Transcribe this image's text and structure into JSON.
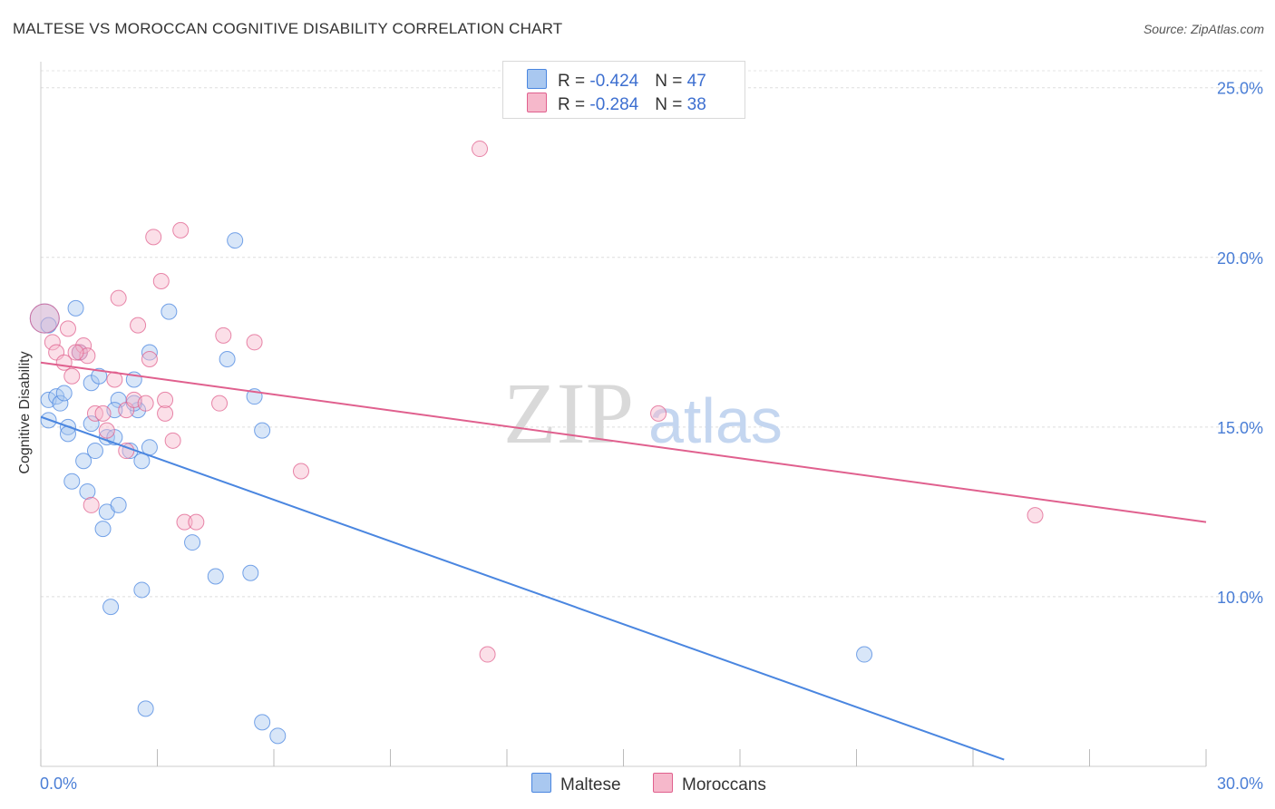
{
  "title": "MALTESE VS MOROCCAN COGNITIVE DISABILITY CORRELATION CHART",
  "source": "Source: ZipAtlas.com",
  "watermark": {
    "zip": "ZIP",
    "atlas": "atlas"
  },
  "legend": {
    "rows": [
      {
        "r_label": "R = ",
        "r_value": "-0.424",
        "n_label": "N = ",
        "n_value": "47",
        "color": "#a9c8f0"
      },
      {
        "r_label": "R = ",
        "r_value": "-0.284",
        "n_label": "N = ",
        "n_value": "38",
        "color": "#f6b8cb"
      }
    ]
  },
  "bottom_legend": [
    {
      "label": "Maltese",
      "color": "#a9c8f0"
    },
    {
      "label": "Moroccans",
      "color": "#f6b8cb"
    }
  ],
  "chart_data": {
    "type": "scatter",
    "title": "MALTESE VS MOROCCAN COGNITIVE DISABILITY CORRELATION CHART",
    "xlabel": "",
    "ylabel": "Cognitive Disability",
    "xlim": [
      0,
      30
    ],
    "ylim": [
      5,
      25.5
    ],
    "x_tick_labels": [
      "0.0%",
      "30.0%"
    ],
    "y_ticks": [
      10,
      15,
      20,
      25
    ],
    "y_tick_labels": [
      "10.0%",
      "15.0%",
      "20.0%",
      "25.0%"
    ],
    "grid": true,
    "series": [
      {
        "name": "Maltese",
        "color": "#4a86e0",
        "fill": "#a9c8f0",
        "trend": {
          "x": [
            0,
            24.8
          ],
          "y": [
            15.3,
            5.2
          ]
        },
        "points": [
          [
            0.1,
            18.2
          ],
          [
            0.2,
            15.2
          ],
          [
            0.2,
            15.8
          ],
          [
            0.4,
            15.9
          ],
          [
            0.5,
            15.7
          ],
          [
            0.6,
            16.0
          ],
          [
            0.7,
            15.0
          ],
          [
            0.7,
            14.8
          ],
          [
            0.8,
            13.4
          ],
          [
            0.9,
            18.5
          ],
          [
            1.0,
            17.2
          ],
          [
            1.1,
            14.0
          ],
          [
            1.2,
            13.1
          ],
          [
            1.3,
            15.1
          ],
          [
            1.3,
            16.3
          ],
          [
            1.4,
            14.3
          ],
          [
            1.5,
            16.5
          ],
          [
            1.6,
            12.0
          ],
          [
            1.7,
            14.7
          ],
          [
            1.7,
            12.5
          ],
          [
            1.8,
            9.7
          ],
          [
            1.9,
            14.7
          ],
          [
            2.0,
            12.7
          ],
          [
            2.0,
            15.8
          ],
          [
            2.3,
            14.3
          ],
          [
            2.4,
            16.4
          ],
          [
            2.5,
            15.5
          ],
          [
            2.6,
            14.0
          ],
          [
            2.8,
            14.4
          ],
          [
            2.8,
            17.2
          ],
          [
            3.3,
            18.4
          ],
          [
            1.9,
            15.5
          ],
          [
            2.6,
            10.2
          ],
          [
            2.7,
            6.7
          ],
          [
            3.9,
            11.6
          ],
          [
            4.5,
            10.6
          ],
          [
            4.8,
            17.0
          ],
          [
            5.0,
            20.5
          ],
          [
            5.4,
            10.7
          ],
          [
            5.5,
            15.9
          ],
          [
            5.7,
            14.9
          ],
          [
            5.7,
            6.3
          ],
          [
            6.1,
            5.9
          ],
          [
            21.2,
            8.3
          ],
          [
            0.2,
            18.0
          ],
          [
            1.0,
            17.2
          ],
          [
            2.4,
            15.7
          ]
        ]
      },
      {
        "name": "Moroccans",
        "color": "#e0608e",
        "fill": "#f6b8cb",
        "trend": {
          "x": [
            0,
            30
          ],
          "y": [
            16.9,
            12.2
          ]
        },
        "points": [
          [
            0.1,
            18.2
          ],
          [
            0.3,
            17.5
          ],
          [
            0.4,
            17.2
          ],
          [
            0.6,
            16.9
          ],
          [
            0.7,
            17.9
          ],
          [
            0.8,
            16.5
          ],
          [
            1.0,
            17.2
          ],
          [
            1.1,
            17.4
          ],
          [
            1.2,
            17.1
          ],
          [
            1.3,
            12.7
          ],
          [
            1.4,
            15.4
          ],
          [
            1.6,
            15.4
          ],
          [
            1.7,
            14.9
          ],
          [
            1.9,
            16.4
          ],
          [
            2.0,
            18.8
          ],
          [
            2.2,
            15.5
          ],
          [
            2.2,
            14.3
          ],
          [
            2.4,
            15.8
          ],
          [
            2.5,
            18.0
          ],
          [
            2.7,
            15.7
          ],
          [
            2.8,
            17.0
          ],
          [
            2.9,
            20.6
          ],
          [
            3.2,
            15.4
          ],
          [
            3.2,
            15.8
          ],
          [
            3.1,
            19.3
          ],
          [
            3.4,
            14.6
          ],
          [
            3.6,
            20.8
          ],
          [
            3.7,
            12.2
          ],
          [
            4.0,
            12.2
          ],
          [
            4.6,
            15.7
          ],
          [
            4.7,
            17.7
          ],
          [
            5.5,
            17.5
          ],
          [
            6.7,
            13.7
          ],
          [
            11.3,
            23.2
          ],
          [
            11.5,
            8.3
          ],
          [
            15.9,
            15.4
          ],
          [
            25.6,
            12.4
          ],
          [
            0.9,
            17.2
          ]
        ]
      }
    ]
  }
}
